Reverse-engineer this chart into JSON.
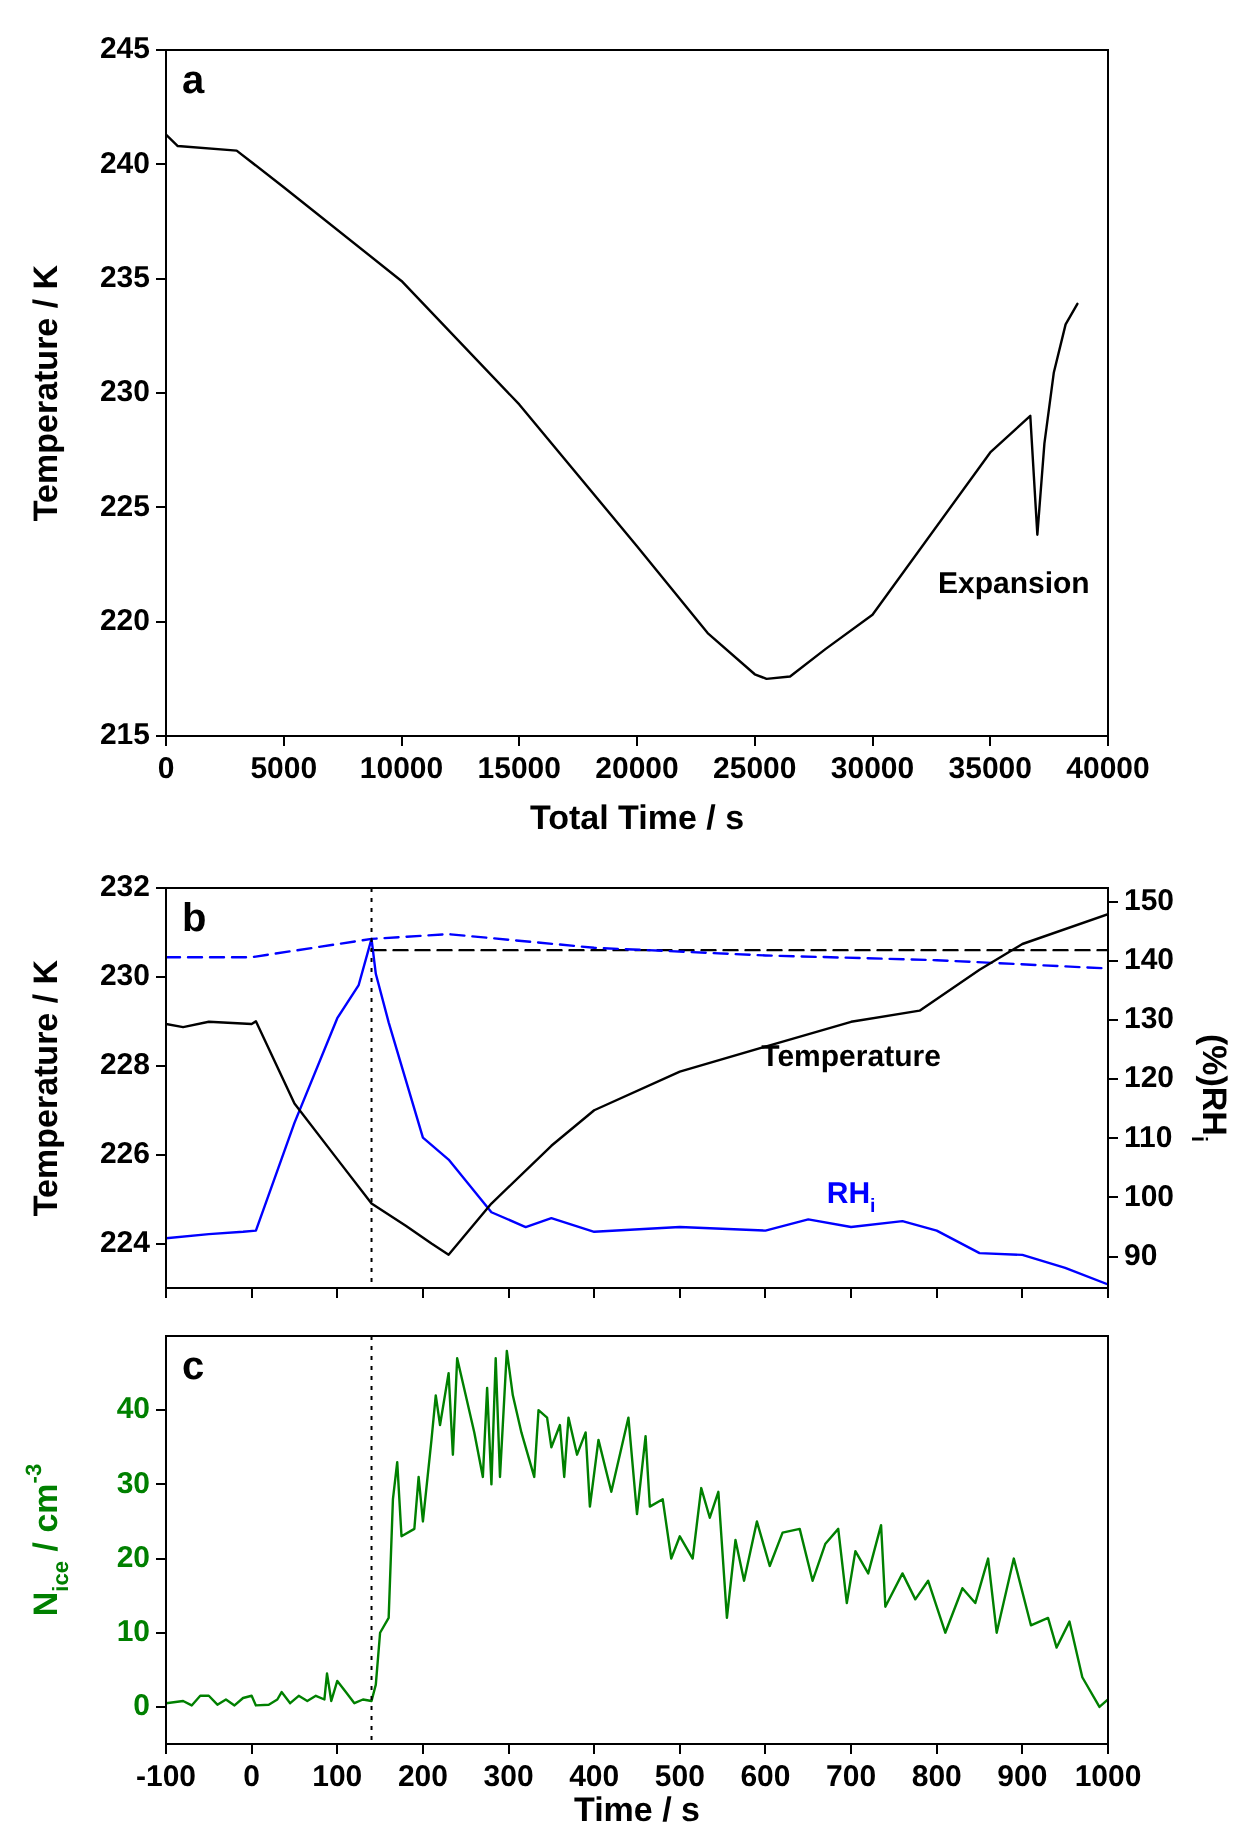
{
  "chart_data": [
    {
      "type": "line",
      "xlabel": "Total Time / s",
      "ylabel": "Temperature / K",
      "xlim": [
        0,
        40000
      ],
      "ylim": [
        215,
        245
      ],
      "xticks": [
        0,
        5000,
        10000,
        15000,
        20000,
        25000,
        30000,
        35000,
        40000
      ],
      "yticks": [
        215,
        220,
        225,
        230,
        235,
        240,
        245
      ],
      "grid": false,
      "marker": "none",
      "annotations": [
        "a",
        "Expansion"
      ],
      "series": [
        {
          "color": "#000000",
          "x": [
            0,
            500,
            3000,
            5000,
            10000,
            15000,
            20000,
            23000,
            25000,
            25500,
            26500,
            28000,
            30000,
            35000,
            36700,
            37000,
            37300,
            37700,
            38200,
            38700
          ],
          "values": [
            241.3,
            240.8,
            240.6,
            239.0,
            234.9,
            229.5,
            223.3,
            219.5,
            217.7,
            217.5,
            217.6,
            218.8,
            220.3,
            227.4,
            229.0,
            223.8,
            227.8,
            230.9,
            233.0,
            233.9
          ]
        }
      ]
    },
    {
      "type": "line",
      "ylabel": "Temperature / K",
      "y2label": "(%)RH$_{i}$",
      "xlim": [
        -100,
        1000
      ],
      "ylim": [
        223,
        232
      ],
      "y2lim": [
        84.7,
        152.3
      ],
      "xticks": [
        -100,
        0,
        100,
        200,
        300,
        400,
        500,
        600,
        700,
        800,
        900,
        1000
      ],
      "yticks": [
        224,
        226,
        228,
        230,
        232
      ],
      "y2ticks": [
        90,
        100,
        110,
        120,
        130,
        140,
        150
      ],
      "tick_labels": "y",
      "grid": false,
      "marker": "none",
      "annotations": [
        "b"
      ],
      "ref_lines": [
        {
          "axis": "x",
          "value": 140,
          "color": "#000000",
          "line_style": "dotted"
        }
      ],
      "series": [
        {
          "name": "Temperature",
          "color": "#000000",
          "x": [
            -100,
            -80,
            -50,
            0,
            5,
            50,
            100,
            140,
            180,
            210,
            230,
            280,
            350,
            400,
            500,
            600,
            700,
            780,
            850,
            900,
            1000
          ],
          "values": [
            228.94,
            228.87,
            228.99,
            228.94,
            229.0,
            227.15,
            225.9,
            224.9,
            224.4,
            224.0,
            223.75,
            224.9,
            226.2,
            227.0,
            227.87,
            228.43,
            228.99,
            229.24,
            230.16,
            230.74,
            231.41
          ]
        },
        {
          "name": "RH$_{i}$",
          "color": "#0000ff",
          "axis": "y2",
          "x": [
            -100,
            -50,
            -10,
            5,
            50,
            100,
            125,
            140,
            145,
            160,
            200,
            230,
            280,
            320,
            350,
            400,
            500,
            600,
            650,
            700,
            760,
            800,
            850,
            900,
            950,
            1000
          ],
          "values": [
            93.1,
            93.8,
            94.2,
            94.4,
            112.6,
            130.3,
            135.9,
            143.7,
            137.8,
            129.6,
            110.1,
            106.4,
            97.5,
            95.0,
            96.5,
            94.2,
            95.0,
            94.4,
            96.3,
            95.0,
            96.0,
            94.4,
            90.6,
            90.3,
            88.1,
            85.3
          ]
        },
        {
          "color": "#0000ff",
          "axis": "y2",
          "line_style": "dashed",
          "x": [
            -100,
            0,
            140,
            230,
            400,
            600,
            800,
            1000
          ],
          "values": [
            140.6,
            140.6,
            143.7,
            144.5,
            142.2,
            140.9,
            140.1,
            138.7
          ]
        },
        {
          "color": "#000000",
          "axis": "y2",
          "line_style": "dashed",
          "x": [
            140,
            1000
          ],
          "values": [
            141.8,
            141.8
          ]
        }
      ]
    },
    {
      "type": "line",
      "xlabel": "Time / s",
      "ylabel": "N$_{ice}$ / cm$^{-3}$",
      "xlim": [
        -100,
        1000
      ],
      "ylim": [
        -5,
        50
      ],
      "xticks": [
        -100,
        0,
        100,
        200,
        300,
        400,
        500,
        600,
        700,
        800,
        900,
        1000
      ],
      "yticks": [
        0,
        10,
        20,
        30,
        40
      ],
      "grid": false,
      "marker": "none",
      "annotations": [
        "c"
      ],
      "ref_lines": [
        {
          "axis": "x",
          "value": 140,
          "color": "#000000",
          "line_style": "dotted"
        }
      ],
      "series": [
        {
          "color": "#008000",
          "x": [
            -100,
            -80,
            -70,
            -60,
            -50,
            -40,
            -30,
            -20,
            -10,
            0,
            5,
            20,
            30,
            35,
            45,
            55,
            65,
            75,
            85,
            88,
            93,
            100,
            110,
            120,
            130,
            140,
            145,
            150,
            160,
            165,
            170,
            175,
            190,
            195,
            200,
            210,
            215,
            220,
            230,
            235,
            240,
            250,
            260,
            270,
            275,
            280,
            285,
            290,
            298,
            305,
            315,
            330,
            335,
            345,
            350,
            360,
            365,
            370,
            380,
            390,
            395,
            405,
            420,
            440,
            450,
            460,
            465,
            480,
            490,
            500,
            515,
            525,
            535,
            545,
            555,
            565,
            575,
            590,
            605,
            620,
            640,
            655,
            670,
            685,
            695,
            705,
            720,
            735,
            740,
            760,
            775,
            790,
            810,
            830,
            845,
            860,
            870,
            890,
            910,
            930,
            940,
            955,
            970,
            990,
            1000
          ],
          "values": [
            0.5,
            0.8,
            0.2,
            1.5,
            1.5,
            0.3,
            1.0,
            0.2,
            1.2,
            1.5,
            0.2,
            0.3,
            1.0,
            2.0,
            0.5,
            1.5,
            0.8,
            1.5,
            1.0,
            4.5,
            0.8,
            3.5,
            2.0,
            0.5,
            1.0,
            0.8,
            3,
            10,
            12,
            28,
            33,
            23,
            24,
            31,
            25,
            36,
            42,
            38,
            45,
            34,
            47,
            42,
            37,
            31,
            43,
            30,
            47,
            31,
            48,
            42,
            37,
            31,
            40,
            39,
            35,
            38,
            31,
            39,
            34,
            37,
            27,
            36,
            29,
            39,
            26,
            36.5,
            27,
            28,
            20,
            23,
            20,
            29.5,
            25.5,
            29,
            12,
            22.5,
            17,
            25,
            19,
            23.5,
            24,
            17,
            22,
            24,
            14,
            21,
            18,
            24.5,
            13.5,
            18,
            14.5,
            17,
            10,
            16,
            14,
            20,
            10,
            20,
            11,
            12,
            8,
            11.5,
            4,
            0,
            1
          ]
        }
      ]
    }
  ]
}
